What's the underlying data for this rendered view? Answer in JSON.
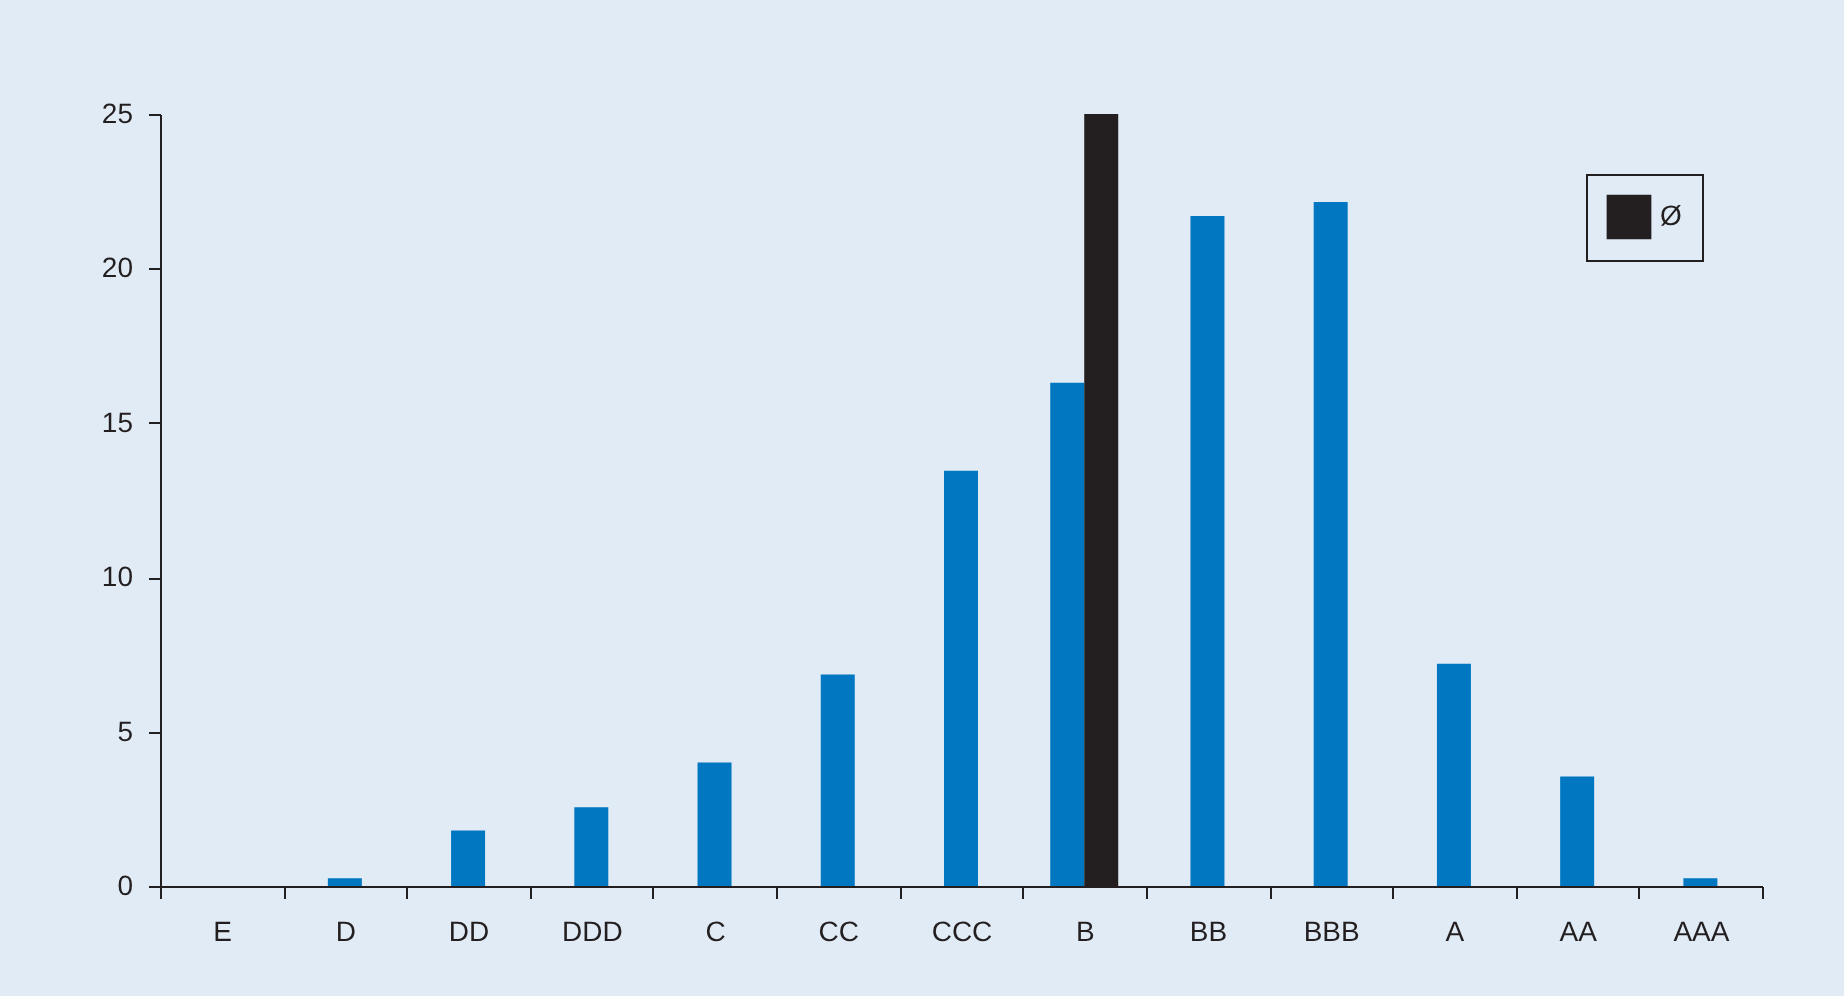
{
  "chart_data": {
    "type": "bar",
    "categories": [
      "E",
      "D",
      "DD",
      "DDD",
      "C",
      "CC",
      "CCC",
      "B",
      "BB",
      "BBB",
      "A",
      "AA",
      "AAA"
    ],
    "series": [
      {
        "color": "#0077c0",
        "values": [
          0,
          0.25,
          1.8,
          2.55,
          4.0,
          6.85,
          13.45,
          16.3,
          21.7,
          22.15,
          7.2,
          3.55,
          0.25
        ]
      },
      {
        "name": "Ø",
        "color": "#231f20",
        "values": [
          null,
          null,
          null,
          null,
          null,
          null,
          null,
          25,
          null,
          null,
          null,
          null,
          null
        ]
      }
    ],
    "ylim": [
      0,
      25
    ],
    "yticks": [
      0,
      5,
      10,
      15,
      20,
      25
    ],
    "grid": false,
    "legend": "top right"
  }
}
